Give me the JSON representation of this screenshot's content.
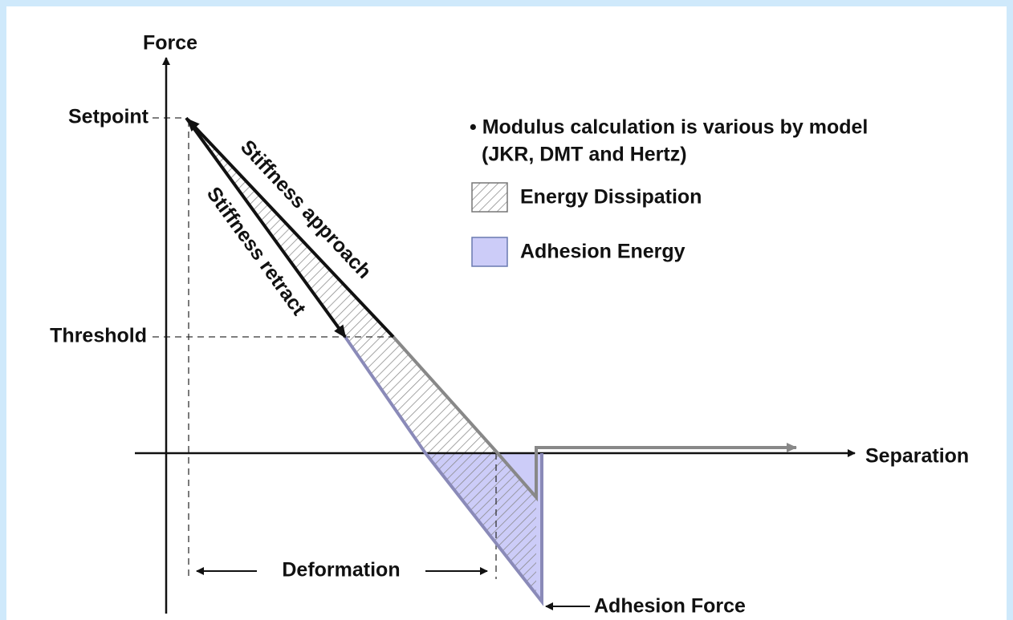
{
  "axes": {
    "y_label": "Force",
    "x_label": "Separation",
    "setpoint": "Setpoint",
    "threshold": "Threshold"
  },
  "curves": {
    "approach": "Stiffness approach",
    "retract": "Stiffness retract"
  },
  "annotations": {
    "deformation": "Deformation",
    "adhesion_force": "Adhesion Force"
  },
  "legend": {
    "note": [
      "• Modulus calculation is various by model",
      "(JKR, DMT and Hertz)"
    ],
    "items": [
      "Energy Dissipation",
      "Adhesion Energy"
    ]
  }
}
